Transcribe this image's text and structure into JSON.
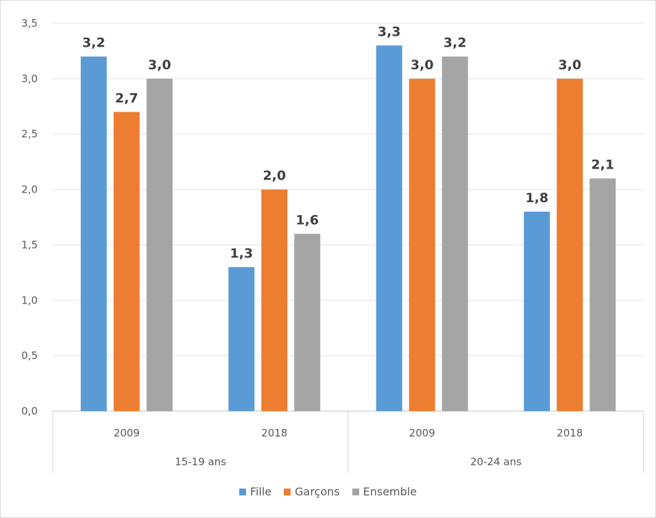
{
  "chart_data": {
    "type": "bar",
    "groups": [
      "15-19 ans",
      "20-24 ans"
    ],
    "categories": [
      "2009",
      "2018",
      "2009",
      "2018"
    ],
    "category_groups": [
      "15-19 ans",
      "15-19 ans",
      "20-24 ans",
      "20-24 ans"
    ],
    "series": [
      {
        "name": "Fille",
        "color": "#5B9BD5",
        "values": [
          3.2,
          1.3,
          3.3,
          1.8
        ],
        "labels": [
          "3,2",
          "1,3",
          "3,3",
          "1,8"
        ]
      },
      {
        "name": "Garçons",
        "color": "#ED7D31",
        "values": [
          2.7,
          2.0,
          3.0,
          3.0
        ],
        "labels": [
          "2,7",
          "2,0",
          "3,0",
          "3,0"
        ]
      },
      {
        "name": "Ensemble",
        "color": "#A5A5A5",
        "values": [
          3.0,
          1.6,
          3.2,
          2.1
        ],
        "labels": [
          "3,0",
          "1,6",
          "3,2",
          "2,1"
        ]
      }
    ],
    "ylim": [
      0,
      3.5
    ],
    "yticks": [
      0,
      0.5,
      1.0,
      1.5,
      2.0,
      2.5,
      3.0,
      3.5
    ],
    "ytick_labels": [
      "0,0",
      "0,5",
      "1,0",
      "1,5",
      "2,0",
      "2,5",
      "3,0",
      "3,5"
    ],
    "title": "",
    "xlabel": "",
    "ylabel": "",
    "grid": true,
    "legend_position": "bottom"
  }
}
